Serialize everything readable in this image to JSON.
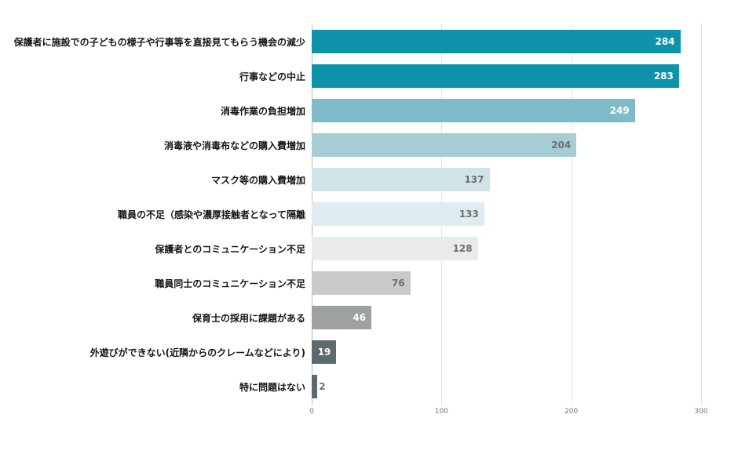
{
  "chart_data": {
    "type": "bar",
    "orientation": "horizontal",
    "title": "",
    "xlabel": "",
    "ylabel": "",
    "xlim": [
      0,
      300
    ],
    "x_ticks": [
      "0",
      "100",
      "200",
      "300"
    ],
    "grid": "vertical",
    "legend": "none",
    "categories": [
      "保護者に施設での子どもの様子や行事等を直接見てもらう機会の減少",
      "行事などの中止",
      "消毒作業の負担増加",
      "消毒液や消毒布などの購入費増加",
      "マスク等の購入費増加",
      "職員の不足（感染や濃厚接触者となって隔離",
      "保護者とのコミュニケーション不足",
      "職員同士のコミュニケーション不足",
      "保育士の採用に課題がある",
      "外遊びができない(近隣からのクレームなどにより)",
      "特に問題はない"
    ],
    "values": [
      284,
      283,
      249,
      204,
      137,
      133,
      128,
      76,
      46,
      19,
      2
    ],
    "bar_colors": [
      "#0e93ab",
      "#0e93ab",
      "#7ebac7",
      "#a6ccd4",
      "#cfe3e8",
      "#dcecef",
      "#e9ebeb",
      "#c8cac9",
      "#9da1a1",
      "#5e696d",
      "#5e696d"
    ],
    "value_label_colors": [
      "#ffffff",
      "#ffffff",
      "#ffffff",
      "#6e6e6e",
      "#6e6e6e",
      "#6e6e6e",
      "#6e6e6e",
      "#6e6e6e",
      "#ffffff",
      "#ffffff",
      "#6e6e6e"
    ],
    "value_label_positions": [
      "inside",
      "inside",
      "inside",
      "inside",
      "inside",
      "inside",
      "inside",
      "inside",
      "inside",
      "inside",
      "outside"
    ]
  }
}
